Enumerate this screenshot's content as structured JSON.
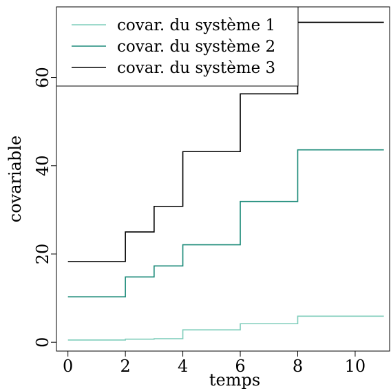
{
  "chart_data": {
    "type": "line",
    "step": true,
    "xlabel": "temps",
    "ylabel": "covariable",
    "xlim": [
      -0.4,
      11.2
    ],
    "ylim": [
      -2,
      76
    ],
    "xticks": [
      0,
      2,
      4,
      6,
      8,
      10
    ],
    "yticks": [
      0,
      20,
      40,
      60
    ],
    "grid": false,
    "legend_position": "top-left",
    "series": [
      {
        "name": "covar. du système 1",
        "color": "#7fcdbb",
        "x": [
          0,
          2,
          3,
          4,
          6,
          8,
          11
        ],
        "y": [
          0.5,
          0.7,
          0.8,
          2.8,
          4.2,
          5.9,
          5.9
        ]
      },
      {
        "name": "covar. du système 2",
        "color": "#1a8a78",
        "x": [
          0,
          2,
          3,
          4,
          6,
          8,
          11
        ],
        "y": [
          10.3,
          14.8,
          17.3,
          22.1,
          31.9,
          43.6,
          43.6
        ]
      },
      {
        "name": "covar. du système 3",
        "color": "#000000",
        "x": [
          0,
          2,
          3,
          4,
          6,
          8,
          11
        ],
        "y": [
          18.3,
          25.0,
          30.8,
          43.2,
          56.3,
          72.5,
          72.5
        ]
      }
    ]
  }
}
